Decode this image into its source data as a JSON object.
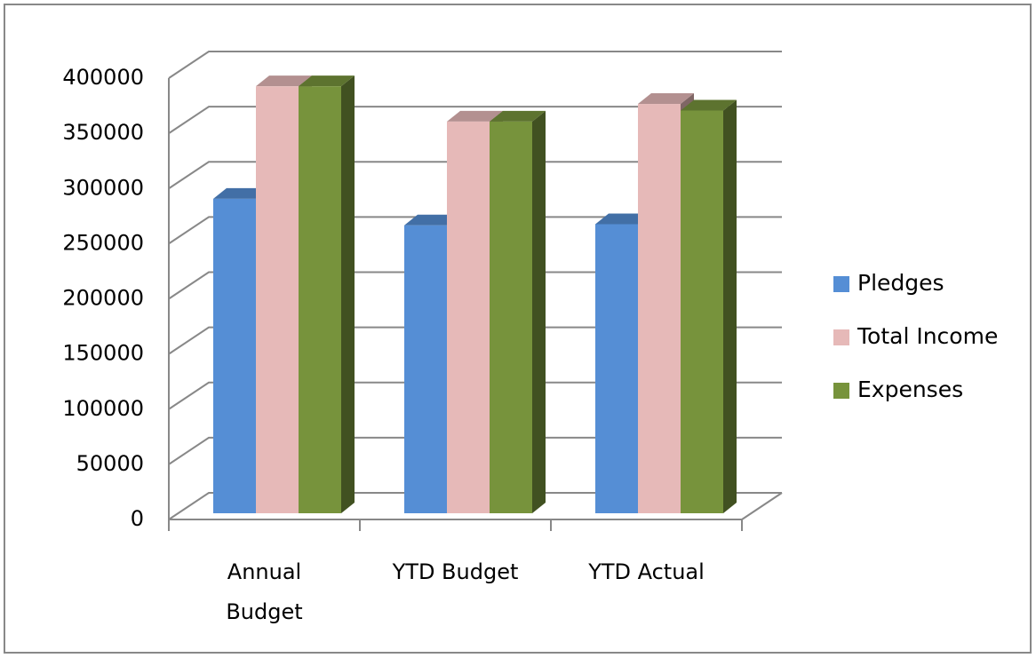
{
  "chart_data": {
    "type": "bar3d",
    "categories": [
      "Annual Budget",
      "YTD Budget",
      "YTD Actual"
    ],
    "series": [
      {
        "name": "Pledges",
        "color": "#558ed5",
        "values": [
          285000,
          261000,
          262000
        ]
      },
      {
        "name": "Total Income",
        "color": "#e6b9b8",
        "values": [
          387000,
          355000,
          371000
        ]
      },
      {
        "name": "Expenses",
        "color": "#77933c",
        "values": [
          387000,
          355000,
          365000
        ]
      }
    ],
    "ylim": [
      0,
      400000
    ],
    "yticks": [
      0,
      50000,
      100000,
      150000,
      200000,
      250000,
      300000,
      350000,
      400000
    ],
    "grid": true,
    "legend": "right"
  }
}
